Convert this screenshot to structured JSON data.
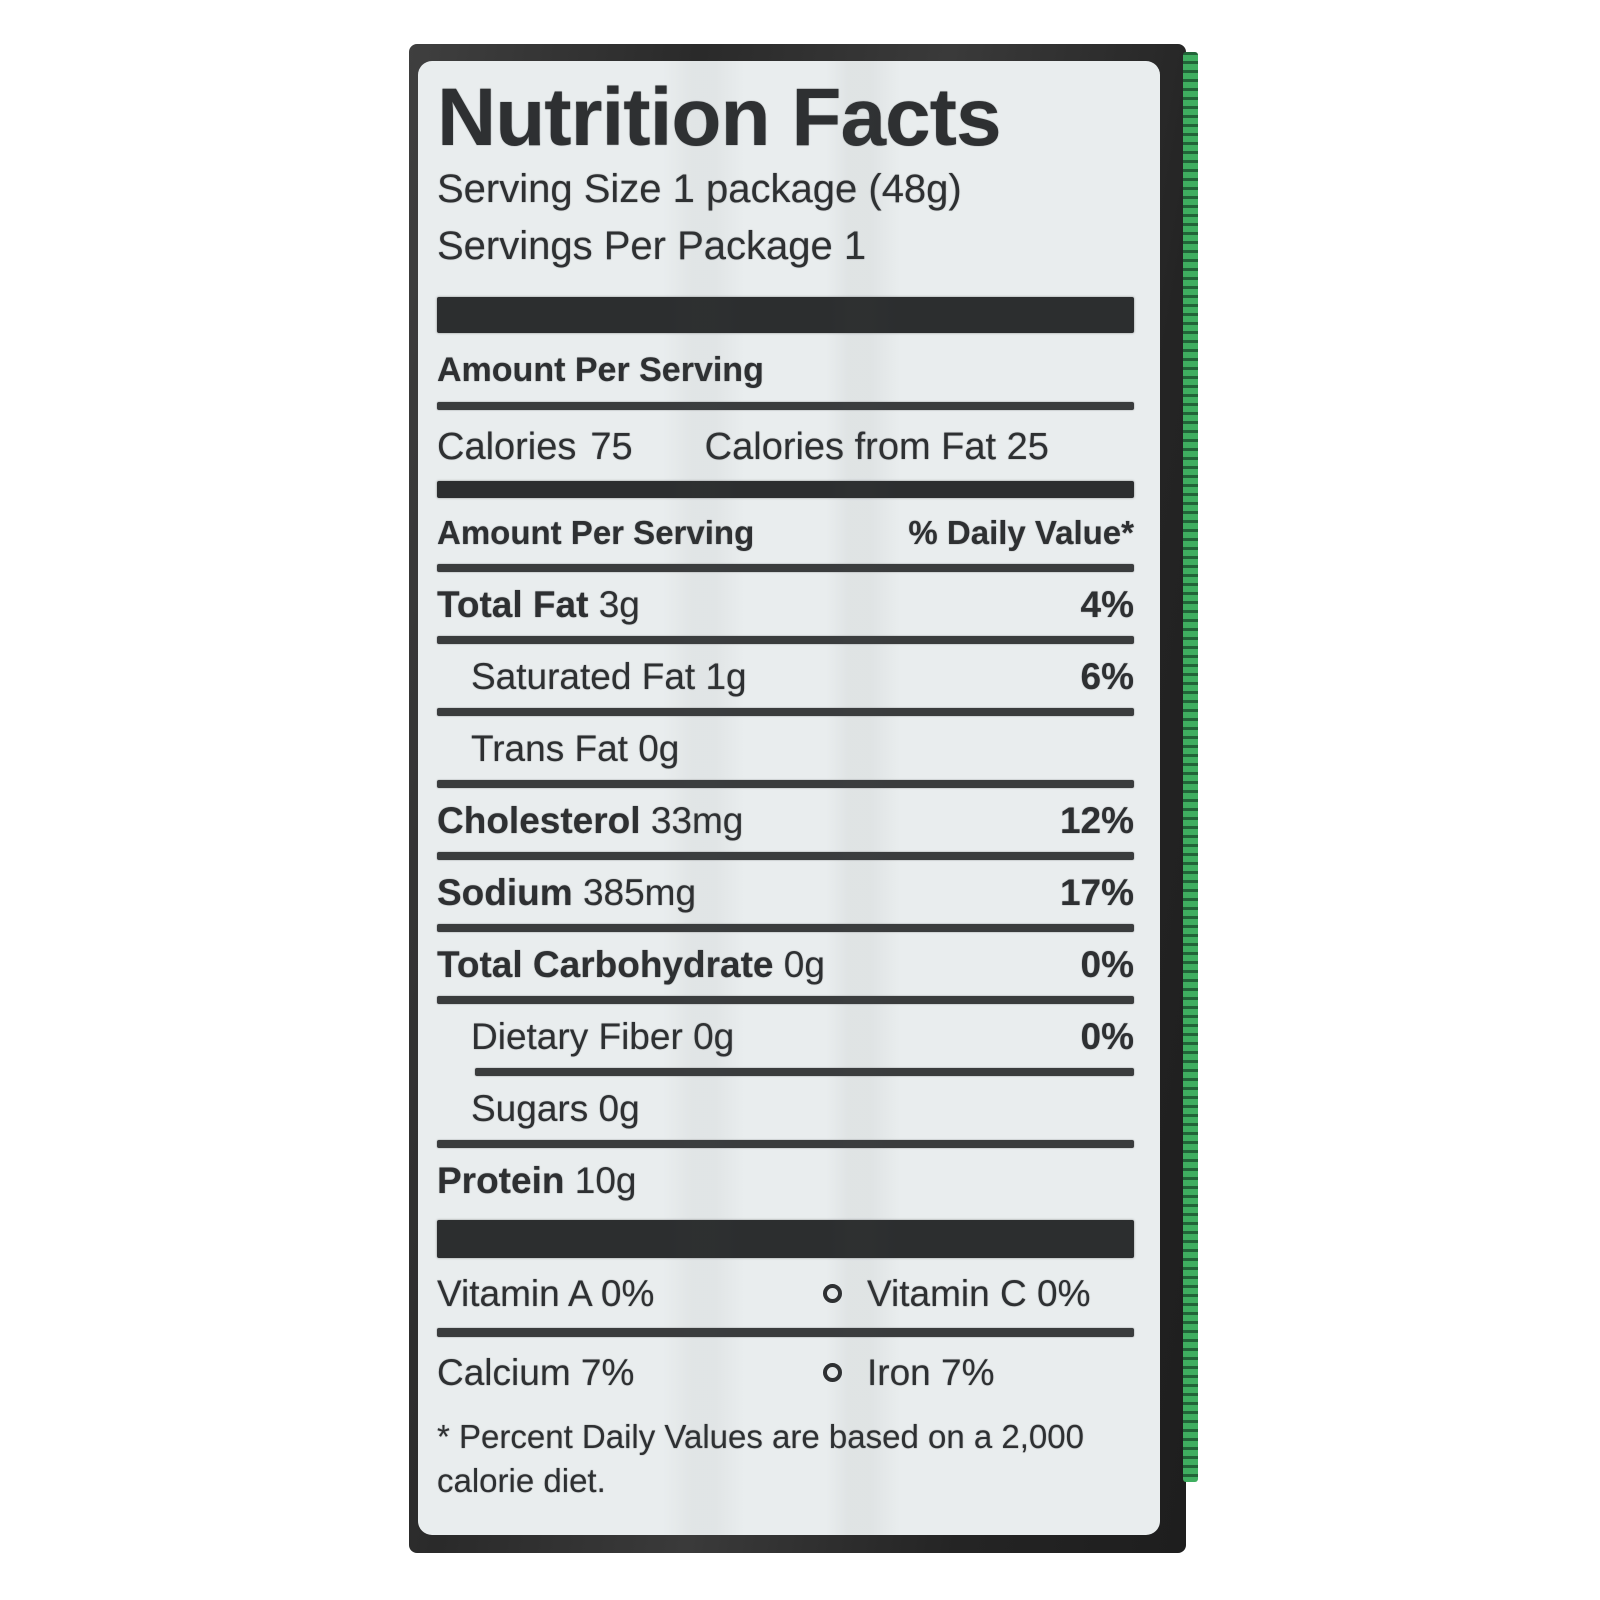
{
  "label": {
    "title": "Nutrition Facts",
    "serving_size": "Serving Size 1 package (48g)",
    "servings_per_package": "Servings Per Package 1",
    "amount_per_serving": "Amount Per Serving",
    "calories": {
      "label": "Calories",
      "value": "75",
      "from_fat": "Calories from Fat 25"
    },
    "daily_value_header": {
      "left": "Amount Per Serving",
      "right": "% Daily Value*"
    },
    "nutrients": [
      {
        "name": "Total Fat",
        "amount": "3g",
        "dv": "4%",
        "bold": true,
        "indent": false,
        "rule": "full"
      },
      {
        "name": "Saturated Fat",
        "amount": "1g",
        "dv": "6%",
        "bold": false,
        "indent": true,
        "rule": "full"
      },
      {
        "name": "Trans Fat",
        "amount": "0g",
        "dv": "",
        "bold": false,
        "indent": true,
        "rule": "full"
      },
      {
        "name": "Cholesterol",
        "amount": "33mg",
        "dv": "12%",
        "bold": true,
        "indent": false,
        "rule": "full"
      },
      {
        "name": "Sodium",
        "amount": "385mg",
        "dv": "17%",
        "bold": true,
        "indent": false,
        "rule": "full"
      },
      {
        "name": "Total Carbohydrate",
        "amount": "0g",
        "dv": "0%",
        "bold": true,
        "indent": false,
        "rule": "full"
      },
      {
        "name": "Dietary Fiber",
        "amount": "0g",
        "dv": "0%",
        "bold": false,
        "indent": true,
        "rule": "indent"
      },
      {
        "name": "Sugars",
        "amount": "0g",
        "dv": "",
        "bold": false,
        "indent": true,
        "rule": "full"
      },
      {
        "name": "Protein",
        "amount": "10g",
        "dv": "",
        "bold": true,
        "indent": false,
        "rule": "none"
      }
    ],
    "vitamins": [
      {
        "left": "Vitamin A 0%",
        "right": "Vitamin C 0%",
        "rule_after": true
      },
      {
        "left": "Calcium 7%",
        "right": "Iron 7%",
        "rule_after": false
      }
    ],
    "footnote_lines": [
      "* Percent Daily Values are based on a 2,000",
      "calorie diet."
    ],
    "colors": {
      "label_bg": "#e9edee",
      "text": "#2e3032",
      "bars": "#2c2e2f",
      "package": "#2a2a2a",
      "edge_green": "#3fae60"
    }
  }
}
